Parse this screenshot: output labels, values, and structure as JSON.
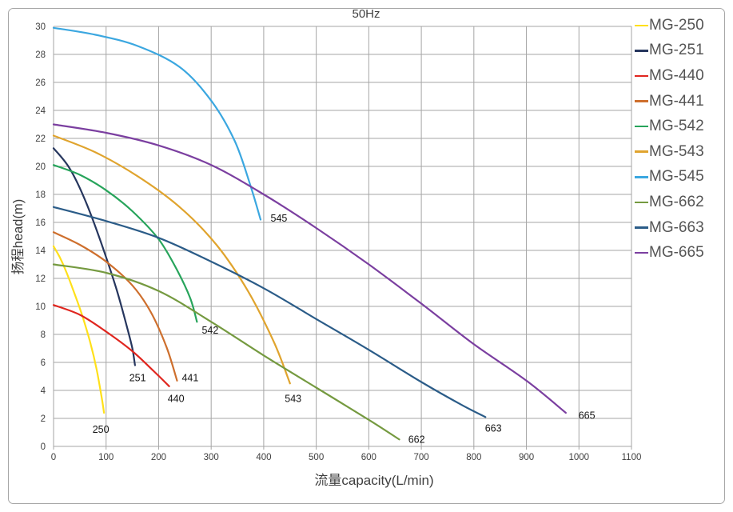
{
  "chart_data": {
    "type": "line",
    "title": "50Hz",
    "xlabel": "流量capacity(L/min)",
    "ylabel": "扬程head(m)",
    "x_range": [
      0,
      1100
    ],
    "y_range": [
      0,
      30
    ],
    "x_ticks": [
      0,
      100,
      200,
      300,
      400,
      500,
      600,
      700,
      800,
      900,
      1000,
      1100
    ],
    "y_ticks": [
      0,
      2,
      4,
      6,
      8,
      10,
      12,
      14,
      16,
      18,
      20,
      22,
      24,
      26,
      28,
      30
    ],
    "grid": true,
    "grid_color": "#a6a6a6",
    "border_color": "#a6a6a6",
    "legend_position": "right",
    "series": [
      {
        "name": "MG-250",
        "id": "250",
        "color": "#ffe01a",
        "points": [
          [
            0,
            14.3
          ],
          [
            12,
            13.5
          ],
          [
            25,
            12.4
          ],
          [
            40,
            10.9
          ],
          [
            55,
            9.3
          ],
          [
            70,
            7.4
          ],
          [
            82,
            5.5
          ],
          [
            92,
            3.4
          ],
          [
            96,
            2.4
          ]
        ],
        "label": {
          "text": "250",
          "x": 90,
          "y": 1.2
        }
      },
      {
        "name": "MG-251",
        "id": "251",
        "color": "#26365e",
        "points": [
          [
            0,
            21.3
          ],
          [
            30,
            19.9
          ],
          [
            60,
            17.6
          ],
          [
            90,
            14.6
          ],
          [
            120,
            11.2
          ],
          [
            140,
            8.5
          ],
          [
            150,
            7.0
          ],
          [
            155,
            5.8
          ]
        ],
        "label": {
          "text": "251",
          "x": 160,
          "y": 4.9
        }
      },
      {
        "name": "MG-440",
        "id": "440",
        "color": "#e0261f",
        "points": [
          [
            0,
            10.1
          ],
          [
            50,
            9.4
          ],
          [
            100,
            8.2
          ],
          [
            150,
            6.8
          ],
          [
            190,
            5.4
          ],
          [
            220,
            4.3
          ]
        ],
        "label": {
          "text": "440",
          "x": 233,
          "y": 3.4
        }
      },
      {
        "name": "MG-441",
        "id": "441",
        "color": "#ce6f2d",
        "points": [
          [
            0,
            15.3
          ],
          [
            50,
            14.4
          ],
          [
            100,
            13.2
          ],
          [
            150,
            11.5
          ],
          [
            185,
            9.6
          ],
          [
            215,
            7.1
          ],
          [
            235,
            4.7
          ]
        ],
        "label": {
          "text": "441",
          "x": 260,
          "y": 4.9
        }
      },
      {
        "name": "MG-542",
        "id": "542",
        "color": "#27a45b",
        "points": [
          [
            0,
            20.1
          ],
          [
            50,
            19.4
          ],
          [
            100,
            18.3
          ],
          [
            150,
            16.8
          ],
          [
            200,
            14.8
          ],
          [
            235,
            12.6
          ],
          [
            260,
            10.6
          ],
          [
            273,
            8.9
          ]
        ],
        "label": {
          "text": "542",
          "x": 298,
          "y": 8.3
        }
      },
      {
        "name": "MG-543",
        "id": "543",
        "color": "#e0a42e",
        "points": [
          [
            0,
            22.2
          ],
          [
            80,
            21.0
          ],
          [
            160,
            19.3
          ],
          [
            240,
            17.1
          ],
          [
            310,
            14.4
          ],
          [
            370,
            11.1
          ],
          [
            420,
            7.4
          ],
          [
            450,
            4.5
          ]
        ],
        "label": {
          "text": "543",
          "x": 456,
          "y": 3.4
        }
      },
      {
        "name": "MG-545",
        "id": "545",
        "color": "#3ba7e0",
        "points": [
          [
            0,
            29.9
          ],
          [
            80,
            29.4
          ],
          [
            160,
            28.6
          ],
          [
            240,
            27.1
          ],
          [
            300,
            24.7
          ],
          [
            345,
            21.8
          ],
          [
            375,
            18.6
          ],
          [
            394,
            16.2
          ]
        ],
        "label": {
          "text": "545",
          "x": 429,
          "y": 16.3
        }
      },
      {
        "name": "MG-662",
        "id": "662",
        "color": "#759a40",
        "points": [
          [
            0,
            13.0
          ],
          [
            100,
            12.4
          ],
          [
            200,
            11.1
          ],
          [
            300,
            8.9
          ],
          [
            400,
            6.5
          ],
          [
            500,
            4.2
          ],
          [
            600,
            1.9
          ],
          [
            658,
            0.5
          ]
        ],
        "label": {
          "text": "662",
          "x": 691,
          "y": 0.5
        }
      },
      {
        "name": "MG-663",
        "id": "663",
        "color": "#2b5c88",
        "points": [
          [
            0,
            17.1
          ],
          [
            100,
            16.1
          ],
          [
            200,
            14.9
          ],
          [
            300,
            13.2
          ],
          [
            400,
            11.3
          ],
          [
            500,
            9.1
          ],
          [
            600,
            6.9
          ],
          [
            700,
            4.6
          ],
          [
            780,
            2.9
          ],
          [
            822,
            2.1
          ]
        ],
        "label": {
          "text": "663",
          "x": 837,
          "y": 1.3
        }
      },
      {
        "name": "MG-665",
        "id": "665",
        "color": "#7b3fa0",
        "points": [
          [
            0,
            23.0
          ],
          [
            100,
            22.4
          ],
          [
            200,
            21.5
          ],
          [
            300,
            20.1
          ],
          [
            400,
            18.0
          ],
          [
            500,
            15.6
          ],
          [
            600,
            13.0
          ],
          [
            700,
            10.2
          ],
          [
            800,
            7.3
          ],
          [
            900,
            4.7
          ],
          [
            975,
            2.4
          ]
        ],
        "label": {
          "text": "665",
          "x": 1015,
          "y": 2.2
        }
      }
    ]
  }
}
